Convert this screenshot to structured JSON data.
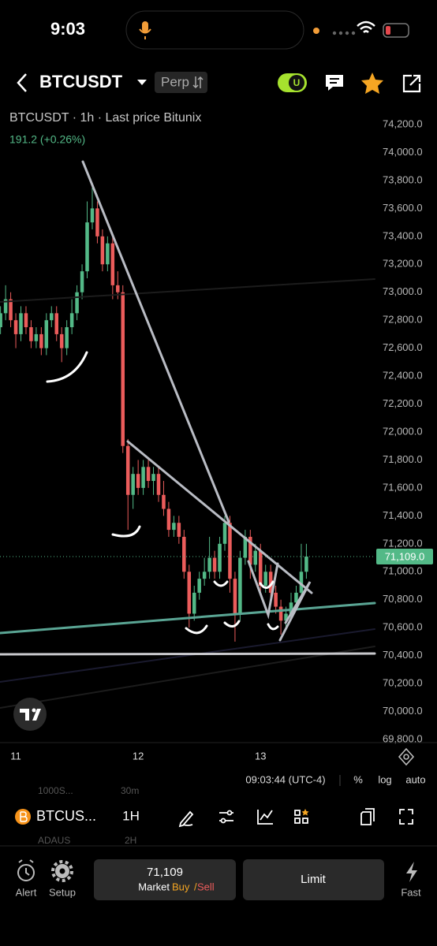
{
  "status_bar": {
    "time": "9:03"
  },
  "header": {
    "symbol": "BTCUSDT",
    "badge": "Perp",
    "toggle_label": "U"
  },
  "chart": {
    "type": "candlestick",
    "legend": "BTCUSDT · 1h · Last price Bitunix",
    "change": "191.2 (+0.26%)",
    "up_color": "#53b987",
    "down_color": "#eb5c5b",
    "ylim": [
      69800,
      74200
    ],
    "yticks": [
      {
        "value": 74200,
        "label": "74,200.0"
      },
      {
        "value": 74000,
        "label": "74,000.0"
      },
      {
        "value": 73800,
        "label": "73,800.0"
      },
      {
        "value": 73600,
        "label": "73,600.0"
      },
      {
        "value": 73400,
        "label": "73,400.0"
      },
      {
        "value": 73200,
        "label": "73,200.0"
      },
      {
        "value": 73000,
        "label": "73,000.0"
      },
      {
        "value": 72800,
        "label": "72,800.0"
      },
      {
        "value": 72600,
        "label": "72,600.0"
      },
      {
        "value": 72400,
        "label": "72,400.0"
      },
      {
        "value": 72200,
        "label": "72,200.0"
      },
      {
        "value": 72000,
        "label": "72,000.0"
      },
      {
        "value": 71800,
        "label": "71,800.0"
      },
      {
        "value": 71600,
        "label": "71,600.0"
      },
      {
        "value": 71400,
        "label": "71,400.0"
      },
      {
        "value": 71200,
        "label": "71,200.0"
      },
      {
        "value": 71000,
        "label": "71,000.0"
      },
      {
        "value": 70800,
        "label": "70,800.0"
      },
      {
        "value": 70600,
        "label": "70,600.0"
      },
      {
        "value": 70400,
        "label": "70,400.0"
      },
      {
        "value": 70200,
        "label": "70,200.0"
      },
      {
        "value": 70000,
        "label": "70,000.0"
      },
      {
        "value": 69800,
        "label": "69,800.0"
      }
    ],
    "xlim": [
      -3.1,
      70.4
    ],
    "xticks": [
      {
        "value": 0,
        "label": "11"
      },
      {
        "value": 24,
        "label": "12"
      },
      {
        "value": 48,
        "label": "13"
      }
    ],
    "last_price": {
      "value": 71109,
      "label": "71,109.0"
    },
    "x": [
      -3,
      -2,
      -1,
      0,
      1,
      2,
      3,
      4,
      5,
      6,
      7,
      8,
      9,
      10,
      11,
      12,
      13,
      14,
      15,
      16,
      17,
      18,
      19,
      20,
      21,
      22,
      23,
      24,
      25,
      26,
      27,
      28,
      29,
      30,
      31,
      32,
      33,
      34,
      35,
      36,
      37,
      38,
      39,
      40,
      41,
      42,
      43,
      44,
      45,
      46,
      47,
      48,
      49,
      50,
      51,
      52,
      53,
      54,
      55,
      56,
      57
    ],
    "ohlc": [
      [
        72750,
        72900,
        72700,
        72850
      ],
      [
        72850,
        73050,
        72800,
        72950
      ],
      [
        72950,
        73000,
        72750,
        72800
      ],
      [
        72800,
        72850,
        72600,
        72700
      ],
      [
        72700,
        72900,
        72650,
        72850
      ],
      [
        72850,
        72900,
        72700,
        72750
      ],
      [
        72750,
        72800,
        72600,
        72650
      ],
      [
        72650,
        72750,
        72600,
        72700
      ],
      [
        72700,
        72750,
        72550,
        72600
      ],
      [
        72600,
        72850,
        72550,
        72800
      ],
      [
        72800,
        72900,
        72750,
        72850
      ],
      [
        72850,
        72900,
        72650,
        72700
      ],
      [
        72700,
        72750,
        72500,
        72600
      ],
      [
        72600,
        72800,
        72550,
        72750
      ],
      [
        72750,
        72950,
        72700,
        72850
      ],
      [
        72850,
        73050,
        72800,
        73000
      ],
      [
        73000,
        73200,
        72950,
        73150
      ],
      [
        73150,
        73650,
        73100,
        73500
      ],
      [
        73500,
        73750,
        73450,
        73600
      ],
      [
        73600,
        73650,
        73350,
        73400
      ],
      [
        73400,
        73450,
        73150,
        73200
      ],
      [
        73200,
        73400,
        73150,
        73350
      ],
      [
        73350,
        73400,
        72950,
        73050
      ],
      [
        73050,
        73150,
        72950,
        73000
      ],
      [
        73000,
        73050,
        71850,
        71900
      ],
      [
        71900,
        71950,
        71300,
        71550
      ],
      [
        71550,
        71750,
        71450,
        71700
      ],
      [
        71700,
        71800,
        71550,
        71600
      ],
      [
        71600,
        71800,
        71550,
        71750
      ],
      [
        71750,
        71800,
        71600,
        71650
      ],
      [
        71650,
        71750,
        71550,
        71700
      ],
      [
        71700,
        71750,
        71500,
        71550
      ],
      [
        71550,
        71650,
        71400,
        71450
      ],
      [
        71450,
        71500,
        71250,
        71300
      ],
      [
        71300,
        71400,
        71250,
        71350
      ],
      [
        71350,
        71400,
        71200,
        71250
      ],
      [
        71250,
        71300,
        70950,
        71000
      ],
      [
        71000,
        71050,
        70600,
        70700
      ],
      [
        70700,
        70900,
        70650,
        70850
      ],
      [
        70850,
        71000,
        70800,
        70950
      ],
      [
        70950,
        71100,
        70900,
        71000
      ],
      [
        71000,
        71250,
        70950,
        71100
      ],
      [
        71100,
        71150,
        70950,
        71000
      ],
      [
        71000,
        71250,
        70950,
        71200
      ],
      [
        71200,
        71400,
        71150,
        71350
      ],
      [
        71350,
        71400,
        70850,
        70950
      ],
      [
        70950,
        71000,
        70500,
        70700
      ],
      [
        70700,
        71150,
        70650,
        71100
      ],
      [
        71100,
        71300,
        71050,
        71250
      ],
      [
        71250,
        71300,
        70950,
        71050
      ],
      [
        71050,
        71200,
        71000,
        71150
      ],
      [
        71150,
        71200,
        70850,
        70900
      ],
      [
        70900,
        71050,
        70850,
        71000
      ],
      [
        71000,
        71050,
        70800,
        70850
      ],
      [
        70850,
        70900,
        70700,
        70750
      ],
      [
        70750,
        70800,
        70550,
        70650
      ],
      [
        70650,
        70750,
        70600,
        70700
      ],
      [
        70700,
        70850,
        70650,
        70780
      ],
      [
        70780,
        70900,
        70750,
        70850
      ],
      [
        70850,
        71200,
        70800,
        71000
      ],
      [
        71000,
        71200,
        70950,
        71109
      ]
    ]
  },
  "chart_footer": {
    "time": "09:03:44 (UTC-4)",
    "percent": "%",
    "log": "log",
    "auto": "auto"
  },
  "toolbar": {
    "symbol": "BTCUS...",
    "interval": "1H",
    "ghost_symbol_1": "1000S...",
    "ghost_interval_1": "30m",
    "ghost_symbol_2": "ADAUS",
    "ghost_interval_2": "2H"
  },
  "bottom_bar": {
    "alert": "Alert",
    "setup": "Setup",
    "price": "71,109",
    "market": "Market",
    "buy": "Buy",
    "slash": "/",
    "sell": "Sell",
    "limit": "Limit",
    "fast": "Fast"
  }
}
